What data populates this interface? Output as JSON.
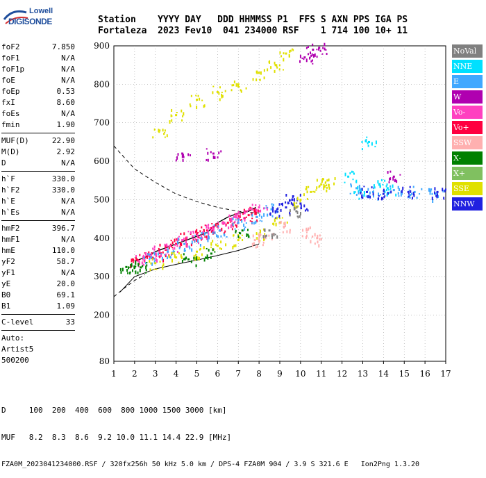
{
  "logo": {
    "line1": "Lowell",
    "line2": "DIGISONDE"
  },
  "header": {
    "row1": "Station    YYYY DAY   DDD HHMMSS P1  FFS S AXN PPS IGA PS",
    "row2": "Fortaleza  2023 Fev10  041 234000 RSF    1 714 100 10+ 11"
  },
  "params": {
    "group1": [
      {
        "label": "foF2",
        "value": "7.850"
      },
      {
        "label": "foF1",
        "value": "N/A"
      },
      {
        "label": "foF1p",
        "value": "N/A"
      },
      {
        "label": "foE",
        "value": "N/A"
      },
      {
        "label": "foEp",
        "value": "0.53"
      },
      {
        "label": "fxI",
        "value": "8.60"
      },
      {
        "label": "foEs",
        "value": "N/A"
      },
      {
        "label": "fmin",
        "value": "1.90"
      }
    ],
    "group2": [
      {
        "label": "MUF(D)",
        "value": "22.90"
      },
      {
        "label": "M(D)",
        "value": "2.92"
      },
      {
        "label": "D",
        "value": "N/A"
      }
    ],
    "group3": [
      {
        "label": "h`F",
        "value": "330.0"
      },
      {
        "label": "h`F2",
        "value": "330.0"
      },
      {
        "label": "h`E",
        "value": "N/A"
      },
      {
        "label": "h`Es",
        "value": "N/A"
      }
    ],
    "group4": [
      {
        "label": "hmF2",
        "value": "396.7"
      },
      {
        "label": "hmF1",
        "value": "N/A"
      },
      {
        "label": "hmE",
        "value": "110.0"
      },
      {
        "label": "yF2",
        "value": "58.7"
      },
      {
        "label": "yF1",
        "value": "N/A"
      },
      {
        "label": "yE",
        "value": "20.0"
      },
      {
        "label": "B0",
        "value": "69.1"
      },
      {
        "label": "B1",
        "value": "1.09"
      }
    ],
    "group5": [
      {
        "label": "C-level",
        "value": "33"
      }
    ],
    "auto": [
      "Auto:",
      "Artist5",
      "500200"
    ]
  },
  "legend": [
    {
      "label": "NoVal",
      "color": "#808080"
    },
    {
      "label": "NNE",
      "color": "#00e0ff"
    },
    {
      "label": "E",
      "color": "#40a8ff"
    },
    {
      "label": "W",
      "color": "#b000b0"
    },
    {
      "label": "Vo-",
      "color": "#ff40c0"
    },
    {
      "label": "Vo+",
      "color": "#ff0040"
    },
    {
      "label": "SSW",
      "color": "#ffb0b0"
    },
    {
      "label": "X-",
      "color": "#008000"
    },
    {
      "label": "X+",
      "color": "#80c060"
    },
    {
      "label": "SSE",
      "color": "#e0e000"
    },
    {
      "label": "NNW",
      "color": "#2020e0"
    }
  ],
  "bottom": {
    "row1": "D     100  200  400  600  800 1000 1500 3000 [km]",
    "row2": "MUF   8.2  8.3  8.6  9.2 10.0 11.1 14.4 22.9 [MHz]",
    "row3": "FZA0M_2023041234000.RSF / 320fx256h 50 kHz 5.0 km / DPS-4 FZA0M 904 / 3.9 S 321.6 E   Ion2Png 1.3.20"
  },
  "chart_data": {
    "type": "scatter",
    "title": "",
    "xlabel": "",
    "ylabel": "",
    "xlim": [
      1,
      17
    ],
    "ylim": [
      80,
      900
    ],
    "xticks": [
      1,
      2,
      3,
      4,
      5,
      6,
      7,
      8,
      9,
      10,
      11,
      12,
      13,
      14,
      15,
      16,
      17
    ],
    "yticks": [
      80,
      200,
      300,
      400,
      500,
      600,
      700,
      800,
      900
    ],
    "grid": "dotted",
    "legend_position": "right",
    "series": [
      {
        "name": "Vo+",
        "color": "#ff0040",
        "points": [
          [
            2.1,
            345
          ],
          [
            2.5,
            350
          ],
          [
            3.0,
            360
          ],
          [
            3.5,
            370
          ],
          [
            4.0,
            385
          ],
          [
            4.5,
            400
          ],
          [
            5.0,
            410
          ],
          [
            5.5,
            420
          ],
          [
            6.0,
            430
          ],
          [
            6.5,
            440
          ],
          [
            7.0,
            450
          ],
          [
            7.5,
            460
          ],
          [
            7.8,
            470
          ]
        ]
      },
      {
        "name": "Vo-",
        "color": "#ff40c0",
        "points": [
          [
            2.2,
            340
          ],
          [
            2.7,
            355
          ],
          [
            3.2,
            365
          ],
          [
            3.7,
            380
          ],
          [
            4.3,
            395
          ],
          [
            4.8,
            405
          ],
          [
            5.3,
            415
          ],
          [
            5.8,
            425
          ],
          [
            6.3,
            440
          ],
          [
            6.8,
            455
          ],
          [
            7.3,
            465
          ],
          [
            8.0,
            480
          ]
        ]
      },
      {
        "name": "E",
        "color": "#40a8ff",
        "points": [
          [
            2.8,
            350
          ],
          [
            3.6,
            365
          ],
          [
            4.4,
            385
          ],
          [
            5.2,
            400
          ],
          [
            6.1,
            420
          ],
          [
            7.0,
            440
          ],
          [
            7.9,
            455
          ],
          [
            8.6,
            475
          ],
          [
            12.7,
            530
          ],
          [
            13.5,
            520
          ],
          [
            14.5,
            525
          ],
          [
            15.5,
            520
          ],
          [
            16.5,
            515
          ]
        ]
      },
      {
        "name": "NNE",
        "color": "#00e0ff",
        "points": [
          [
            12.3,
            560
          ],
          [
            12.9,
            520
          ],
          [
            13.3,
            650
          ],
          [
            13.8,
            540
          ],
          [
            14.2,
            530
          ]
        ]
      },
      {
        "name": "NNW",
        "color": "#2020e0",
        "points": [
          [
            8.8,
            470
          ],
          [
            9.3,
            480
          ],
          [
            9.6,
            500
          ],
          [
            10.0,
            490
          ],
          [
            13.2,
            520
          ],
          [
            14.0,
            515
          ],
          [
            15.2,
            520
          ],
          [
            16.6,
            520
          ]
        ]
      },
      {
        "name": "SSE",
        "color": "#e0e000",
        "points": [
          [
            3.0,
            335
          ],
          [
            4.0,
            350
          ],
          [
            5.0,
            365
          ],
          [
            6.0,
            380
          ],
          [
            7.0,
            395
          ],
          [
            8.0,
            410
          ],
          [
            9.0,
            440
          ],
          [
            10.0,
            500
          ],
          [
            10.5,
            520
          ],
          [
            11.0,
            540
          ],
          [
            11.3,
            550
          ],
          [
            3.2,
            680
          ],
          [
            4.0,
            720
          ],
          [
            5.0,
            760
          ],
          [
            6.0,
            780
          ],
          [
            7.0,
            800
          ],
          [
            8.0,
            830
          ],
          [
            8.8,
            850
          ],
          [
            9.3,
            880
          ]
        ]
      },
      {
        "name": "W",
        "color": "#b000b0",
        "points": [
          [
            4.3,
            620
          ],
          [
            5.8,
            620
          ],
          [
            10.2,
            870
          ],
          [
            10.6,
            890
          ],
          [
            10.9,
            895
          ],
          [
            14.5,
            560
          ]
        ]
      },
      {
        "name": "X-",
        "color": "#008000",
        "points": [
          [
            1.6,
            325
          ],
          [
            2.0,
            326
          ],
          [
            2.3,
            324
          ],
          [
            4.6,
            345
          ],
          [
            5.7,
            360
          ],
          [
            7.2,
            420
          ]
        ]
      },
      {
        "name": "SSW",
        "color": "#ffb0b0",
        "points": [
          [
            7.8,
            395
          ],
          [
            8.3,
            400
          ],
          [
            9.2,
            430
          ],
          [
            10.3,
            420
          ],
          [
            10.8,
            400
          ]
        ]
      },
      {
        "name": "NoVal",
        "color": "#808080",
        "points": [
          [
            8.5,
            420
          ],
          [
            9.8,
            470
          ]
        ]
      }
    ],
    "profile_line": [
      [
        2.0,
        340
      ],
      [
        2.5,
        350
      ],
      [
        3.0,
        365
      ],
      [
        3.5,
        375
      ],
      [
        4.0,
        385
      ],
      [
        4.5,
        395
      ],
      [
        5.0,
        405
      ],
      [
        5.5,
        415
      ],
      [
        6.0,
        440
      ],
      [
        6.5,
        455
      ],
      [
        7.0,
        465
      ],
      [
        7.5,
        470
      ],
      [
        7.85,
        480
      ]
    ],
    "lower_curve": [
      [
        1.3,
        260
      ],
      [
        2.0,
        300
      ],
      [
        3.0,
        320
      ],
      [
        4.0,
        332
      ],
      [
        5.0,
        343
      ],
      [
        6.0,
        355
      ],
      [
        7.0,
        368
      ],
      [
        8.0,
        385
      ]
    ],
    "dashed_curve": [
      [
        1.0,
        640
      ],
      [
        1.5,
        610
      ],
      [
        2.0,
        580
      ],
      [
        3.0,
        545
      ],
      [
        4.0,
        515
      ],
      [
        5.0,
        495
      ],
      [
        6.0,
        480
      ],
      [
        7.0,
        470
      ],
      [
        8.0,
        465
      ]
    ],
    "dashed_lower": [
      [
        1.0,
        248
      ],
      [
        1.5,
        270
      ],
      [
        2.0,
        290
      ],
      [
        2.5,
        305
      ]
    ]
  }
}
